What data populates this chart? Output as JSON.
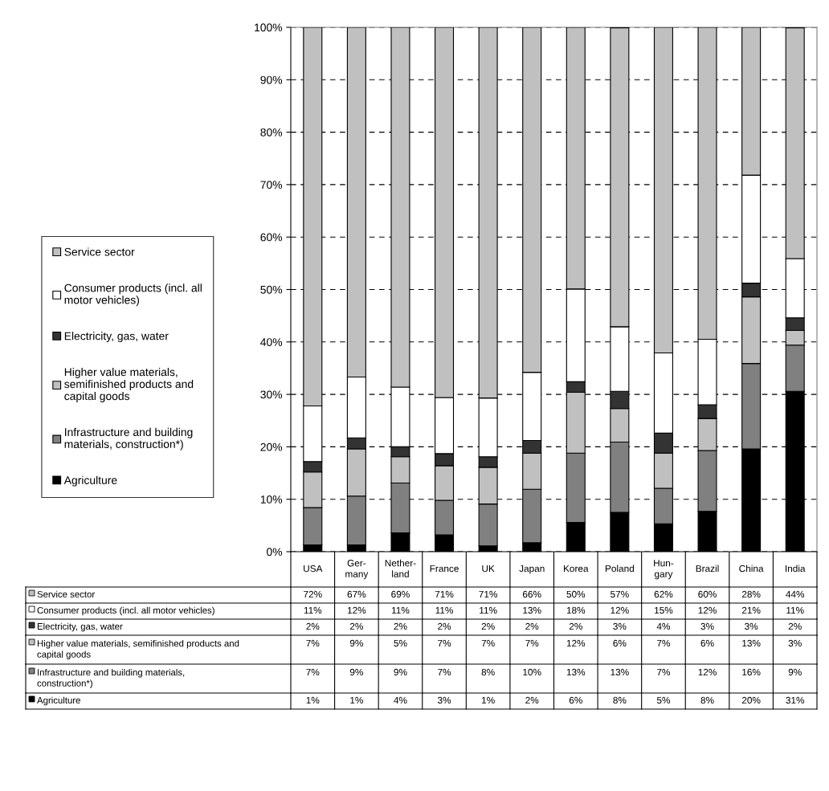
{
  "chart_data": {
    "type": "bar",
    "stacked": true,
    "categories": [
      "USA",
      "Ger-\nmany",
      "Nether-\nland",
      "France",
      "UK",
      "Japan",
      "Korea",
      "Poland",
      "Hun-\ngary",
      "Brazil",
      "China",
      "India"
    ],
    "series": [
      {
        "name": "Agriculture",
        "color": "#000000",
        "values": [
          1.3,
          1.3,
          3.6,
          3.2,
          1.1,
          1.7,
          5.6,
          7.5,
          5.3,
          7.7,
          19.6,
          30.6
        ],
        "value_labels": [
          "1%",
          "1%",
          "4%",
          "3%",
          "1%",
          "2%",
          "6%",
          "8%",
          "5%",
          "8%",
          "20%",
          "31%"
        ]
      },
      {
        "name": "Infrastructure and building materials, construction*)",
        "color": "#808080",
        "values": [
          7.1,
          9.3,
          9.5,
          6.6,
          8.0,
          10.2,
          13.2,
          13.4,
          6.8,
          11.6,
          16.3,
          8.8
        ],
        "value_labels": [
          "7%",
          "9%",
          "9%",
          "7%",
          "8%",
          "10%",
          "13%",
          "13%",
          "7%",
          "12%",
          "16%",
          "9%"
        ]
      },
      {
        "name": "Higher value materials, semifinished products and capital goods",
        "color": "#c0c0c0",
        "values": [
          6.8,
          9.0,
          5.0,
          6.6,
          7.0,
          6.9,
          11.6,
          6.4,
          6.7,
          6.1,
          12.7,
          2.8
        ],
        "value_labels": [
          "7%",
          "9%",
          "5%",
          "7%",
          "7%",
          "7%",
          "12%",
          "6%",
          "7%",
          "6%",
          "13%",
          "3%"
        ]
      },
      {
        "name": "Electricity, gas, water",
        "color": "#333333",
        "values": [
          2.0,
          2.1,
          1.9,
          2.3,
          2.0,
          2.4,
          2.0,
          3.3,
          3.8,
          2.6,
          2.6,
          2.4
        ],
        "value_labels": [
          "2%",
          "2%",
          "2%",
          "2%",
          "2%",
          "2%",
          "2%",
          "3%",
          "4%",
          "3%",
          "3%",
          "2%"
        ]
      },
      {
        "name": "Consumer products (incl. all motor vehicles)",
        "color": "#ffffff",
        "values": [
          10.6,
          11.6,
          11.4,
          10.7,
          11.2,
          13.0,
          17.7,
          12.3,
          15.3,
          12.5,
          20.6,
          11.3
        ],
        "value_labels": [
          "11%",
          "12%",
          "11%",
          "11%",
          "11%",
          "13%",
          "18%",
          "12%",
          "15%",
          "12%",
          "21%",
          "11%"
        ]
      },
      {
        "name": "Service sector",
        "color": "#c0c0c0",
        "values": [
          72.2,
          66.7,
          68.6,
          70.6,
          70.7,
          65.8,
          49.9,
          57.0,
          62.1,
          59.5,
          28.2,
          44.0
        ],
        "value_labels": [
          "72%",
          "67%",
          "69%",
          "71%",
          "71%",
          "66%",
          "50%",
          "57%",
          "62%",
          "60%",
          "28%",
          "44%"
        ]
      }
    ],
    "ylim": [
      0,
      100
    ],
    "yticks": [
      {
        "value": 0,
        "label": "0%"
      },
      {
        "value": 10,
        "label": "10%"
      },
      {
        "value": 20,
        "label": "20%"
      },
      {
        "value": 30,
        "label": "30%"
      },
      {
        "value": 40,
        "label": "40%"
      },
      {
        "value": 50,
        "label": "50%"
      },
      {
        "value": 60,
        "label": "60%"
      },
      {
        "value": 70,
        "label": "70%"
      },
      {
        "value": 80,
        "label": "80%"
      },
      {
        "value": 90,
        "label": "90%"
      },
      {
        "value": 100,
        "label": "100%"
      }
    ],
    "grid": "y",
    "legend": "left"
  }
}
